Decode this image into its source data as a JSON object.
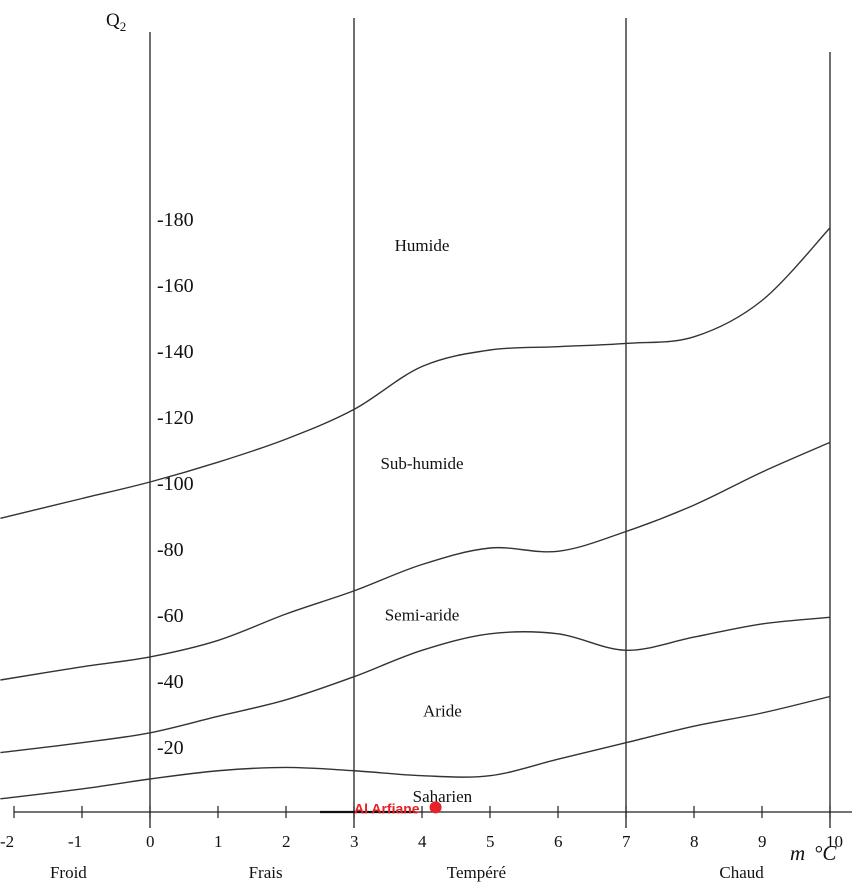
{
  "chart_data": {
    "type": "line",
    "ylabel": "Q",
    "ylabel_sub": "2",
    "xlabel_var": "m",
    "xlabel_unit": "°C",
    "x_ticks": [
      "-2",
      "-1",
      "0",
      "1",
      "2",
      "3",
      "4",
      "5",
      "6",
      "7",
      "8",
      "9",
      "10"
    ],
    "y_ticks": [
      "-180",
      "-160",
      "-140",
      "-120",
      "-100",
      "-80",
      "-60",
      "-40",
      "-20"
    ],
    "vertical_reference_x": [
      0,
      3,
      7,
      10
    ],
    "zones": [
      {
        "label": "Humide",
        "x": 4.0,
        "y": 170
      },
      {
        "label": "Sub-humide",
        "x": 4.0,
        "y": 104
      },
      {
        "label": "Semi-aride",
        "x": 4.0,
        "y": 58
      },
      {
        "label": "Aride",
        "x": 4.3,
        "y": 29
      },
      {
        "label": "Saharien",
        "x": 4.3,
        "y": 3
      }
    ],
    "temperature_classes": [
      {
        "label": "Froid",
        "x": -1.2
      },
      {
        "label": "Frais",
        "x": 1.7
      },
      {
        "label": "Tempéré",
        "x": 4.8
      },
      {
        "label": "Chaud",
        "x": 8.7
      }
    ],
    "series": [
      {
        "x": [
          -2.2,
          -1,
          0,
          1,
          2,
          3,
          4,
          5,
          6,
          7,
          8,
          9,
          10
        ],
        "y": [
          89,
          95,
          100,
          106,
          113,
          122,
          135,
          140,
          141,
          142,
          144,
          155,
          177
        ]
      },
      {
        "x": [
          -2.2,
          -1,
          0,
          1,
          2,
          3,
          4,
          5,
          6,
          7,
          8,
          9,
          10
        ],
        "y": [
          40,
          44,
          47,
          52,
          60,
          67,
          75,
          80,
          79,
          85,
          93,
          103,
          112
        ]
      },
      {
        "x": [
          -2.2,
          -1,
          0,
          1,
          2,
          3,
          4,
          5,
          6,
          7,
          8,
          9,
          10
        ],
        "y": [
          18,
          21,
          24,
          29,
          34,
          41,
          49,
          54,
          54,
          49,
          53,
          57,
          59
        ]
      },
      {
        "x": [
          -2.2,
          -1,
          0,
          1,
          2,
          3,
          4,
          5,
          6,
          7,
          8,
          9,
          10
        ],
        "y": [
          4,
          7,
          10,
          12.5,
          13.5,
          12.5,
          11,
          11,
          16,
          21,
          26,
          30,
          35
        ]
      }
    ],
    "highlight_point": {
      "label": "Al Arfiane",
      "x": 4.2,
      "y": 1.4,
      "color": "#e8202a"
    },
    "xlim": [
      -2.3,
      10.4
    ],
    "ylim": [
      0,
      190
    ],
    "grid": false
  }
}
